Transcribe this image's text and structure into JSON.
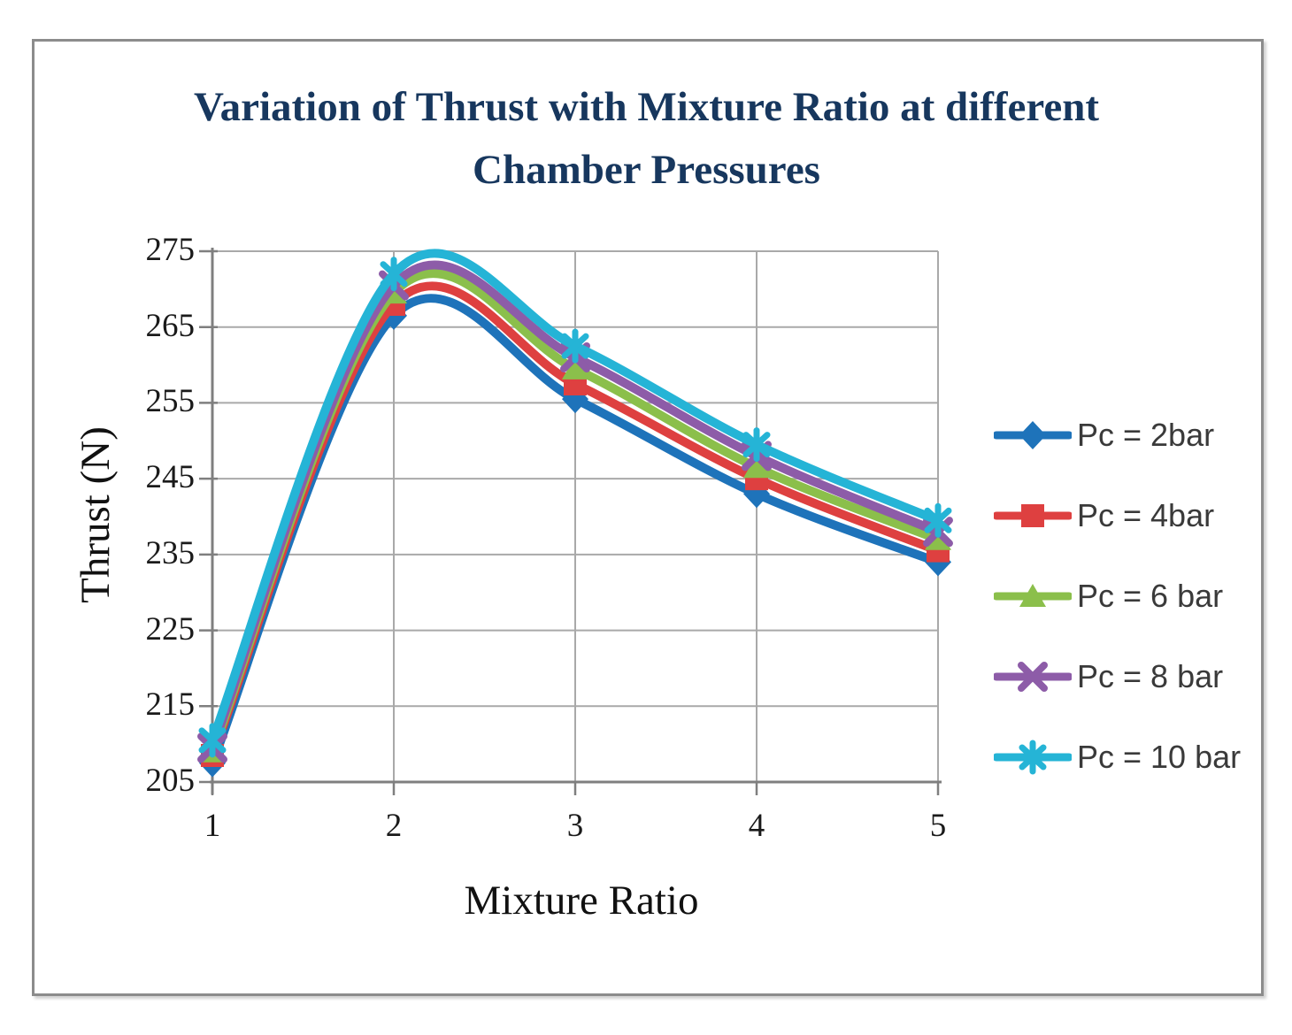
{
  "title": {
    "line1": "Variation of Thrust with Mixture Ratio at different",
    "line2": "Chamber Pressures"
  },
  "chart_data": {
    "type": "line",
    "title": "Variation of Thrust with Mixture Ratio at different Chamber Pressures",
    "xlabel": "Mixture Ratio",
    "ylabel": "Thrust (N)",
    "x": [
      1,
      2,
      3,
      4,
      5
    ],
    "x_ticks": [
      1,
      2,
      3,
      4,
      5
    ],
    "y_ticks": [
      205,
      215,
      225,
      235,
      245,
      255,
      265,
      275
    ],
    "xlim": [
      1,
      5
    ],
    "ylim": [
      205,
      275
    ],
    "grid": true,
    "smooth": true,
    "legend_position": "right",
    "series": [
      {
        "name": "Pc = 2bar",
        "color": "#1e73ba",
        "marker": "diamond",
        "values": [
          207.5,
          266.5,
          255.5,
          243.0,
          234.0
        ]
      },
      {
        "name": "Pc = 4bar",
        "color": "#de4040",
        "marker": "square",
        "values": [
          208.5,
          268.0,
          257.5,
          245.0,
          235.5
        ]
      },
      {
        "name": "Pc = 6 bar",
        "color": "#8bbf4b",
        "marker": "triangle",
        "values": [
          209.0,
          269.5,
          259.5,
          246.5,
          237.0
        ]
      },
      {
        "name": "Pc = 8 bar",
        "color": "#8d5ca8",
        "marker": "x",
        "values": [
          209.5,
          270.5,
          261.0,
          248.0,
          238.0
        ]
      },
      {
        "name": "Pc = 10 bar",
        "color": "#25b4d6",
        "marker": "asterisk",
        "values": [
          210.5,
          272.0,
          262.5,
          249.5,
          239.5
        ]
      }
    ],
    "colors": {
      "title_text": "#17375e",
      "axis_line": "#7f7f7f",
      "gridline": "#a9a9a9",
      "tick_text": "#1a1a1a",
      "legend_text": "#3a3a3a",
      "frame_border": "#8c8c8c"
    }
  }
}
